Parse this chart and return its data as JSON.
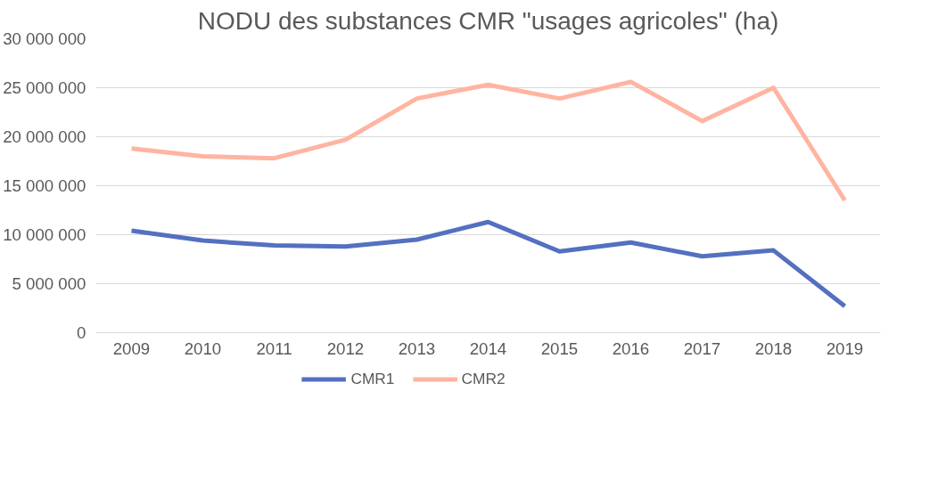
{
  "chart_data": {
    "type": "line",
    "title": "NODU des substances CMR \"usages agricoles\" (ha)",
    "categories": [
      "2009",
      "2010",
      "2011",
      "2012",
      "2013",
      "2014",
      "2015",
      "2016",
      "2017",
      "2018",
      "2019"
    ],
    "series": [
      {
        "name": "CMR1",
        "color": "#5470c0",
        "values": [
          10400000,
          9400000,
          8900000,
          8800000,
          9500000,
          11300000,
          8300000,
          9200000,
          7800000,
          8400000,
          2700000
        ]
      },
      {
        "name": "CMR2",
        "color": "#ffb4a2",
        "values": [
          18800000,
          18000000,
          17800000,
          19700000,
          23900000,
          25300000,
          23900000,
          25600000,
          21600000,
          25000000,
          13500000
        ]
      }
    ],
    "ylim": [
      0,
      30000000
    ],
    "yticks": [
      {
        "value": 0,
        "label": "0"
      },
      {
        "value": 5000000,
        "label": "5 000 000"
      },
      {
        "value": 10000000,
        "label": "10 000 000"
      },
      {
        "value": 15000000,
        "label": "15 000 000"
      },
      {
        "value": 20000000,
        "label": "20 000 000"
      },
      {
        "value": 25000000,
        "label": "25 000 000"
      },
      {
        "value": 30000000,
        "label": "30 000 000"
      }
    ],
    "grid": "y",
    "legend": "bottom",
    "marker": "none",
    "line_style": "solid"
  }
}
